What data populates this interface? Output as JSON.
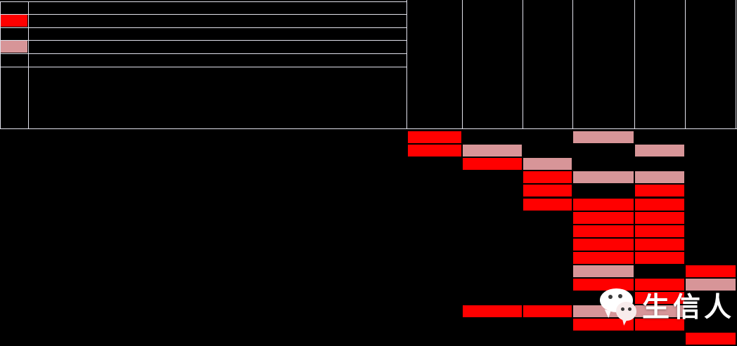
{
  "figure": {
    "background": "#000000",
    "note": "Static figure image. The legend labels, table row labels and rotated column-header text are rendered in near-black ink on a black background and are not legible in the screenshot pixels; only grid lines, colored cells and the watermark are readable."
  },
  "colors": {
    "red_cell": "#FF0000",
    "pink_cell": "#D79598",
    "grid_line": "#E2E2EC",
    "header_text": "#230404",
    "watermark_text": "#FFFFFF"
  },
  "legend": {
    "rows": [
      {
        "swatch": null,
        "label": ""
      },
      {
        "swatch": "red_cell",
        "label": ""
      },
      {
        "swatch": null,
        "label": ""
      },
      {
        "swatch": "pink_cell",
        "label": ""
      },
      {
        "swatch": null,
        "label": ""
      },
      {
        "swatch": null,
        "label": ""
      }
    ]
  },
  "columns": [
    {
      "label": ""
    },
    {
      "label": ""
    },
    {
      "label": ""
    },
    {
      "label": ""
    },
    {
      "label": ""
    },
    {
      "label": ""
    }
  ],
  "chart_data": {
    "type": "heatmap",
    "title": "",
    "legend_position": "top-left",
    "grid": true,
    "n_rows": 16,
    "n_cols": 6,
    "cell_colors_legend": {
      "R": "red (#FF0000)",
      "P": "pink (#D79598)",
      "": "empty/black"
    },
    "cells": [
      [
        "R",
        "",
        "",
        "P",
        "",
        ""
      ],
      [
        "R",
        "P",
        "",
        "",
        "P",
        ""
      ],
      [
        "",
        "R",
        "P",
        "",
        "",
        ""
      ],
      [
        "",
        "",
        "R",
        "P",
        "P",
        ""
      ],
      [
        "",
        "",
        "R",
        "",
        "R",
        ""
      ],
      [
        "",
        "",
        "R",
        "R",
        "R",
        ""
      ],
      [
        "",
        "",
        "",
        "R",
        "R",
        ""
      ],
      [
        "",
        "",
        "",
        "R",
        "R",
        ""
      ],
      [
        "",
        "",
        "",
        "R",
        "R",
        ""
      ],
      [
        "",
        "",
        "",
        "R",
        "R",
        ""
      ],
      [
        "",
        "",
        "",
        "P",
        "",
        "R"
      ],
      [
        "",
        "",
        "",
        "R",
        "R",
        "P"
      ],
      [
        "",
        "",
        "",
        "",
        "R",
        ""
      ],
      [
        "",
        "R",
        "R",
        "P",
        "P",
        ""
      ],
      [
        "",
        "",
        "",
        "R",
        "R",
        ""
      ],
      [
        "",
        "",
        "",
        "",
        "",
        "R"
      ]
    ]
  },
  "watermark": {
    "text": "生信人",
    "icon": "wechat-logo"
  }
}
